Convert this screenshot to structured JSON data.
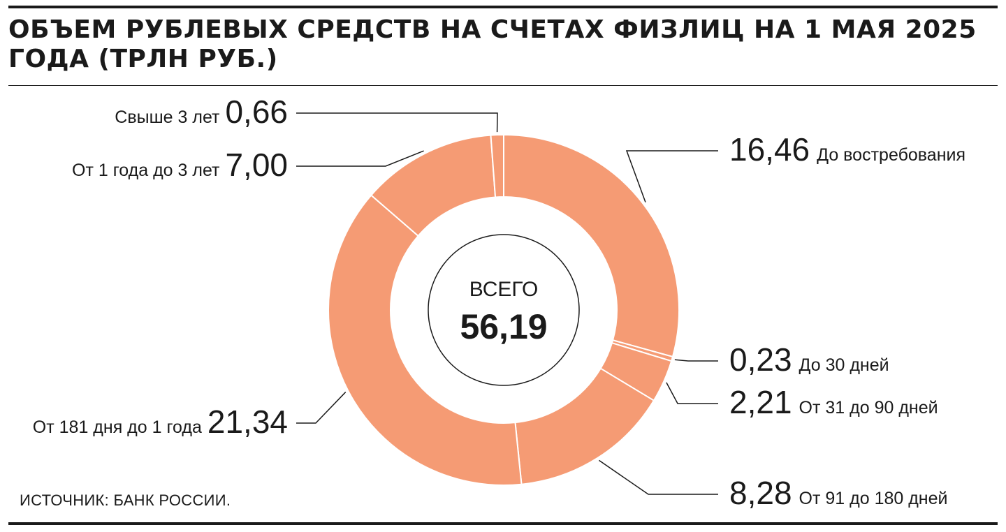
{
  "title": "ОБЪЕМ РУБЛЕВЫХ СРЕДСТВ НА СЧЕТАХ ФИЗЛИЦ НА 1 МАЯ 2025 ГОДА (ТРЛН РУБ.)",
  "source": "ИСТОЧНИК: БАНК РОССИИ.",
  "colors": {
    "slice": "#f59b74",
    "separator": "#ffffff",
    "ink": "#1a1a1a"
  },
  "chart_data": {
    "type": "pie",
    "style": "donut",
    "title": "ОБЪЕМ РУБЛЕВЫХ СРЕДСТВ НА СЧЕТАХ ФИЗЛИЦ НА 1 МАЯ 2025 ГОДА (ТРЛН РУБ.)",
    "center_caption": "ВСЕГО",
    "center_value": "56,19",
    "total": 56.19,
    "categories": [
      "До востребования",
      "До 30 дней",
      "От 31 до 90 дней",
      "От 91  до 180 дней",
      "От 181 дня до 1 года",
      "От 1 года до 3 лет",
      "Свыше 3 лет"
    ],
    "values": [
      16.46,
      0.23,
      2.21,
      8.28,
      21.34,
      7.0,
      0.66
    ],
    "value_labels": [
      "16,46",
      "0,23",
      "2,21",
      "8,28",
      "21,34",
      "7,00",
      "0,66"
    ],
    "start": "top",
    "direction": "clockwise"
  }
}
